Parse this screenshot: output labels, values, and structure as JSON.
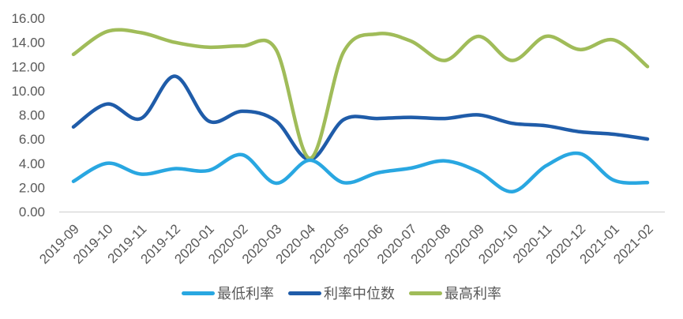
{
  "chart_data": {
    "type": "line",
    "title": "",
    "x_labels": [
      "2019-09",
      "2019-10",
      "2019-11",
      "2019-12",
      "2020-01",
      "2020-02",
      "2020-03",
      "2020-04",
      "2020-05",
      "2020-06",
      "2020-07",
      "2020-08",
      "2020-09",
      "2020-10",
      "2020-11",
      "2020-12",
      "2021-01",
      "2021-02"
    ],
    "y_tick_labels": [
      "0.00",
      "2.00",
      "4.00",
      "6.00",
      "8.00",
      "10.00",
      "12.00",
      "14.00",
      "16.00"
    ],
    "ylim": [
      0,
      16
    ],
    "y_tick_step": 2,
    "grid": false,
    "legend_position": "bottom",
    "smoothed_lines": true,
    "axis_color": "#D9D9D9",
    "label_color": "#595959",
    "series": [
      {
        "id": "min-rate",
        "name": "最低利率",
        "color": "#29A7E1",
        "values": [
          2.5,
          4.0,
          3.1,
          3.55,
          3.4,
          4.7,
          2.35,
          4.25,
          2.4,
          3.2,
          3.6,
          4.2,
          3.3,
          1.65,
          3.8,
          4.8,
          2.6,
          2.4
        ]
      },
      {
        "id": "median-rate",
        "name": "利率中位数",
        "color": "#1F5CA9",
        "values": [
          7.0,
          8.9,
          7.7,
          11.2,
          7.5,
          8.3,
          7.5,
          4.3,
          7.6,
          7.7,
          7.8,
          7.7,
          8.0,
          7.3,
          7.1,
          6.6,
          6.4,
          6.0
        ]
      },
      {
        "id": "max-rate",
        "name": "最高利率",
        "color": "#A0BC59",
        "values": [
          13.0,
          14.9,
          14.8,
          14.0,
          13.6,
          13.7,
          13.4,
          4.4,
          13.2,
          14.7,
          14.1,
          12.5,
          14.5,
          12.5,
          14.5,
          13.4,
          14.2,
          12.0
        ]
      }
    ]
  }
}
